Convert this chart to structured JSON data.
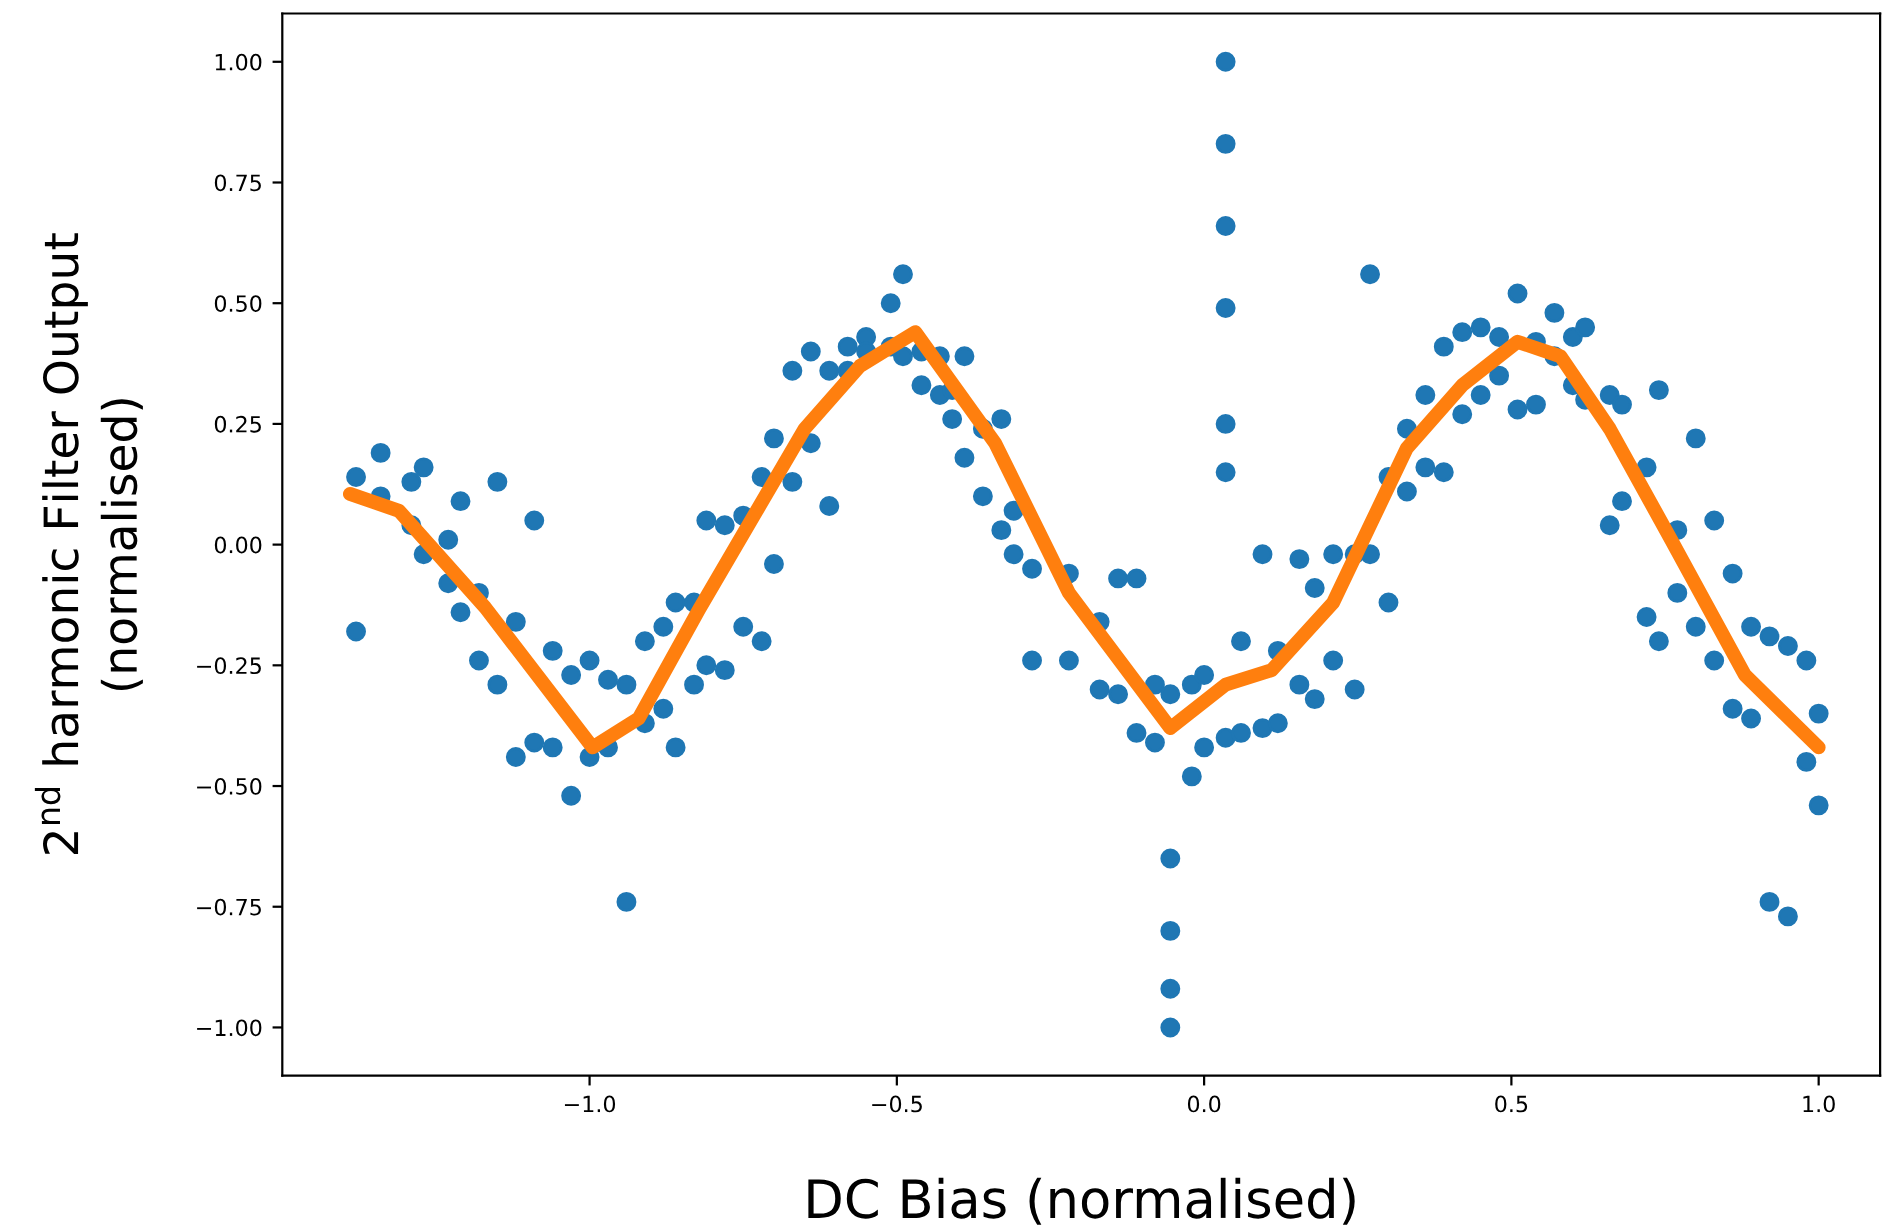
{
  "chart_data": {
    "type": "scatter",
    "xlabel": "DC Bias (normalised)",
    "ylabel": "2$^{nd}$ harmonic Filter Output\n(normalised)",
    "xlim": [
      -1.5,
      1.1
    ],
    "ylim": [
      -1.1,
      1.1
    ],
    "xticks": [
      {
        "value": -1.0,
        "label": "−1.0"
      },
      {
        "value": -0.5,
        "label": "−0.5"
      },
      {
        "value": 0.0,
        "label": "0.0"
      },
      {
        "value": 0.5,
        "label": "0.5"
      },
      {
        "value": 1.0,
        "label": "1.0"
      }
    ],
    "yticks": [
      {
        "value": -1.0,
        "label": "−1.00"
      },
      {
        "value": -0.75,
        "label": "−0.75"
      },
      {
        "value": -0.5,
        "label": "−0.50"
      },
      {
        "value": -0.25,
        "label": "−0.25"
      },
      {
        "value": 0.0,
        "label": "0.00"
      },
      {
        "value": 0.25,
        "label": "0.25"
      },
      {
        "value": 0.5,
        "label": "0.50"
      },
      {
        "value": 0.75,
        "label": "0.75"
      },
      {
        "value": 1.0,
        "label": "1.00"
      }
    ],
    "grid": false,
    "marker": "circle",
    "series": [
      {
        "color": "#1f77b4",
        "x": [
          -1.38,
          -1.38,
          -1.34,
          -1.34,
          -1.29,
          -1.29,
          -1.27,
          -1.27,
          -1.23,
          -1.23,
          -1.21,
          -1.21,
          -1.18,
          -1.18,
          -1.15,
          -1.15,
          -1.12,
          -1.12,
          -1.09,
          -1.09,
          -1.06,
          -1.06,
          -1.03,
          -1.03,
          -1.0,
          -1.0,
          -0.97,
          -0.97,
          -0.94,
          -0.94,
          -0.91,
          -0.91,
          -0.88,
          -0.88,
          -0.86,
          -0.86,
          -0.83,
          -0.83,
          -0.81,
          -0.81,
          -0.78,
          -0.78,
          -0.75,
          -0.75,
          -0.72,
          -0.72,
          -0.7,
          -0.7,
          -0.67,
          -0.67,
          -0.64,
          -0.64,
          -0.61,
          -0.61,
          -0.58,
          -0.58,
          -0.55,
          -0.55,
          -0.51,
          -0.51,
          -0.49,
          -0.49,
          -0.46,
          -0.46,
          -0.43,
          -0.43,
          -0.41,
          -0.41,
          -0.39,
          -0.39,
          -0.36,
          -0.36,
          -0.33,
          -0.33,
          -0.31,
          -0.31,
          -0.28,
          -0.28,
          -0.22,
          -0.22,
          -0.17,
          -0.17,
          -0.14,
          -0.14,
          -0.11,
          -0.11,
          -0.08,
          -0.08,
          -0.055,
          -0.055,
          -0.055,
          -0.055,
          -0.055,
          -0.02,
          -0.02,
          0.0,
          0.0,
          0.035,
          0.035,
          0.035,
          0.035,
          0.035,
          0.035,
          0.035,
          0.06,
          0.06,
          0.095,
          0.095,
          0.12,
          0.12,
          0.155,
          0.155,
          0.18,
          0.18,
          0.21,
          0.21,
          0.245,
          0.245,
          0.27,
          0.27,
          0.3,
          0.3,
          0.33,
          0.33,
          0.36,
          0.36,
          0.39,
          0.39,
          0.42,
          0.42,
          0.45,
          0.45,
          0.48,
          0.48,
          0.51,
          0.51,
          0.54,
          0.54,
          0.57,
          0.57,
          0.6,
          0.6,
          0.62,
          0.62,
          0.66,
          0.66,
          0.68,
          0.68,
          0.72,
          0.72,
          0.74,
          0.74,
          0.77,
          0.77,
          0.8,
          0.8,
          0.83,
          0.83,
          0.86,
          0.86,
          0.89,
          0.89,
          0.92,
          0.92,
          0.95,
          0.95,
          0.98,
          0.98,
          1.0,
          1.0
        ],
        "values": [
          0.14,
          -0.18,
          0.19,
          0.1,
          0.13,
          0.04,
          0.16,
          -0.02,
          0.01,
          -0.08,
          0.09,
          -0.14,
          -0.1,
          -0.24,
          0.13,
          -0.29,
          -0.16,
          -0.44,
          0.05,
          -0.41,
          -0.22,
          -0.42,
          -0.27,
          -0.52,
          -0.24,
          -0.44,
          -0.28,
          -0.42,
          -0.29,
          -0.74,
          -0.2,
          -0.37,
          -0.17,
          -0.34,
          -0.12,
          -0.42,
          -0.12,
          -0.29,
          0.05,
          -0.25,
          0.04,
          -0.26,
          0.06,
          -0.17,
          0.14,
          -0.2,
          0.22,
          -0.04,
          0.36,
          0.13,
          0.4,
          0.21,
          0.36,
          0.08,
          0.41,
          0.36,
          0.43,
          0.4,
          0.5,
          0.41,
          0.56,
          0.39,
          0.4,
          0.33,
          0.39,
          0.31,
          0.32,
          0.26,
          0.39,
          0.18,
          0.24,
          0.1,
          0.26,
          0.03,
          0.07,
          -0.02,
          -0.05,
          -0.24,
          -0.06,
          -0.24,
          -0.16,
          -0.3,
          -0.07,
          -0.31,
          -0.07,
          -0.39,
          -0.29,
          -0.41,
          -0.31,
          -0.65,
          -0.8,
          -0.92,
          -1.0,
          -0.29,
          -0.48,
          -0.27,
          -0.42,
          1.0,
          0.83,
          0.66,
          0.49,
          0.25,
          0.15,
          -0.4,
          -0.2,
          -0.39,
          -0.02,
          -0.38,
          -0.22,
          -0.37,
          -0.03,
          -0.29,
          -0.09,
          -0.32,
          -0.02,
          -0.24,
          -0.02,
          -0.3,
          0.56,
          -0.02,
          0.14,
          -0.12,
          0.24,
          0.11,
          0.31,
          0.16,
          0.41,
          0.15,
          0.44,
          0.27,
          0.45,
          0.31,
          0.43,
          0.35,
          0.52,
          0.28,
          0.42,
          0.29,
          0.48,
          0.39,
          0.43,
          0.33,
          0.45,
          0.3,
          0.31,
          0.04,
          0.29,
          0.09,
          0.16,
          -0.15,
          0.32,
          -0.2,
          0.03,
          -0.1,
          0.22,
          -0.17,
          0.05,
          -0.24,
          -0.06,
          -0.34,
          -0.17,
          -0.36,
          -0.19,
          -0.74,
          -0.21,
          -0.77,
          -0.24,
          -0.45,
          -0.35,
          -0.54
        ]
      },
      {
        "type": "line",
        "color": "#ff7f0e",
        "marker": "none",
        "line_style": "solid",
        "x": [
          -1.39,
          -1.31,
          -1.17,
          -0.995,
          -0.92,
          -0.82,
          -0.65,
          -0.56,
          -0.47,
          -0.34,
          -0.22,
          -0.055,
          0.035,
          0.11,
          0.21,
          0.27,
          0.33,
          0.42,
          0.51,
          0.58,
          0.66,
          0.76,
          0.88,
          1.0
        ],
        "values": [
          0.105,
          0.07,
          -0.13,
          -0.42,
          -0.36,
          -0.13,
          0.24,
          0.37,
          0.44,
          0.21,
          -0.1,
          -0.38,
          -0.29,
          -0.26,
          -0.12,
          0.04,
          0.2,
          0.33,
          0.42,
          0.39,
          0.24,
          0.01,
          -0.27,
          -0.42
        ]
      }
    ]
  }
}
